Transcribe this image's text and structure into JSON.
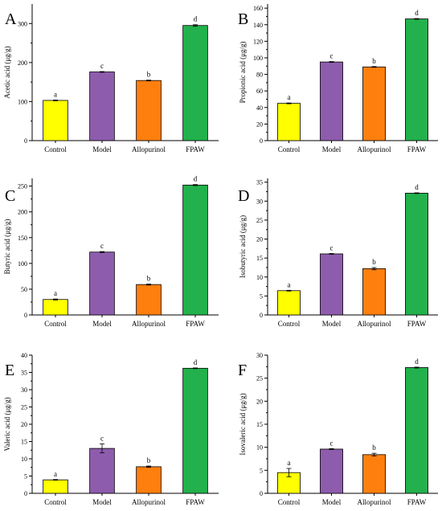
{
  "colors": {
    "Control": "#ffff00",
    "Model": "#8e5cad",
    "Allopurinol": "#ff7f0e",
    "FPAW": "#22b14c",
    "axis": "#000000"
  },
  "chart_data": [
    {
      "type": "bar",
      "panel_label": "A",
      "ylabel": "Acetic acid (μg/g)",
      "categories": [
        "Control",
        "Model",
        "Allopurinol",
        "FPAW"
      ],
      "values": [
        103,
        176,
        154,
        295
      ],
      "errors": [
        1,
        1,
        1,
        2
      ],
      "letters": [
        "a",
        "c",
        "b",
        "d"
      ],
      "ylim": [
        0,
        350
      ],
      "yticks": [
        0,
        100,
        200,
        300
      ],
      "ytick_labels": [
        "0",
        "100",
        "200",
        "300"
      ],
      "grid": false
    },
    {
      "type": "bar",
      "panel_label": "B",
      "ylabel": "Propionic acid (μg/g)",
      "categories": [
        "Control",
        "Model",
        "Allopurinol",
        "FPAW"
      ],
      "values": [
        45,
        95,
        89,
        147
      ],
      "errors": [
        0.5,
        0.5,
        0.5,
        0.5
      ],
      "letters": [
        "a",
        "c",
        "b",
        "d"
      ],
      "ylim": [
        0,
        165
      ],
      "yticks": [
        0,
        20,
        40,
        60,
        80,
        100,
        120,
        140,
        160
      ],
      "ytick_labels": [
        "0",
        "20",
        "40",
        "60",
        "80",
        "100",
        "120",
        "140",
        "160"
      ],
      "grid": false
    },
    {
      "type": "bar",
      "panel_label": "C",
      "ylabel": "Butyric acid (μg/g)",
      "categories": [
        "Control",
        "Model",
        "Allopurinol",
        "FPAW"
      ],
      "values": [
        30,
        122,
        59,
        252
      ],
      "errors": [
        1,
        1,
        1,
        1
      ],
      "letters": [
        "a",
        "c",
        "b",
        "d"
      ],
      "ylim": [
        0,
        265
      ],
      "yticks": [
        0,
        50,
        100,
        150,
        200,
        250
      ],
      "ytick_labels": [
        "0",
        "50",
        "100",
        "150",
        "200",
        "250"
      ],
      "grid": false
    },
    {
      "type": "bar",
      "panel_label": "D",
      "ylabel": "Isobutyric acid (μg/g)",
      "categories": [
        "Control",
        "Model",
        "Allopurinol",
        "FPAW"
      ],
      "values": [
        6.4,
        16.1,
        12.2,
        32.1
      ],
      "errors": [
        0.1,
        0.1,
        0.3,
        0.1
      ],
      "letters": [
        "a",
        "c",
        "b",
        "d"
      ],
      "ylim": [
        0,
        36
      ],
      "yticks": [
        0,
        5,
        10,
        15,
        20,
        25,
        30,
        35
      ],
      "ytick_labels": [
        "0",
        "5",
        "10",
        "15",
        "20",
        "25",
        "30",
        "35"
      ],
      "grid": false
    },
    {
      "type": "bar",
      "panel_label": "E",
      "ylabel": "Valeric acid (μg/g)",
      "categories": [
        "Control",
        "Model",
        "Allopurinol",
        "FPAW"
      ],
      "values": [
        3.9,
        13,
        7.7,
        36.2
      ],
      "errors": [
        0.1,
        1.3,
        0.2,
        0.1
      ],
      "letters": [
        "a",
        "c",
        "b",
        "d"
      ],
      "ylim": [
        0,
        40
      ],
      "yticks": [
        0,
        5,
        10,
        15,
        20,
        25,
        30,
        35,
        40
      ],
      "ytick_labels": [
        "0",
        "5",
        "10",
        "15",
        "20",
        "25",
        "30",
        "35",
        "40"
      ],
      "grid": false
    },
    {
      "type": "bar",
      "panel_label": "F",
      "ylabel": "Isovaleric acid (μg/g)",
      "categories": [
        "Control",
        "Model",
        "Allopurinol",
        "FPAW"
      ],
      "values": [
        4.5,
        9.6,
        8.4,
        27.3
      ],
      "errors": [
        0.9,
        0.1,
        0.3,
        0.1
      ],
      "letters": [
        "a",
        "c",
        "b",
        "d"
      ],
      "ylim": [
        0,
        30
      ],
      "yticks": [
        0,
        5,
        10,
        15,
        20,
        25,
        30
      ],
      "ytick_labels": [
        "0",
        "5",
        "10",
        "15",
        "20",
        "25",
        "30"
      ],
      "grid": false
    }
  ]
}
